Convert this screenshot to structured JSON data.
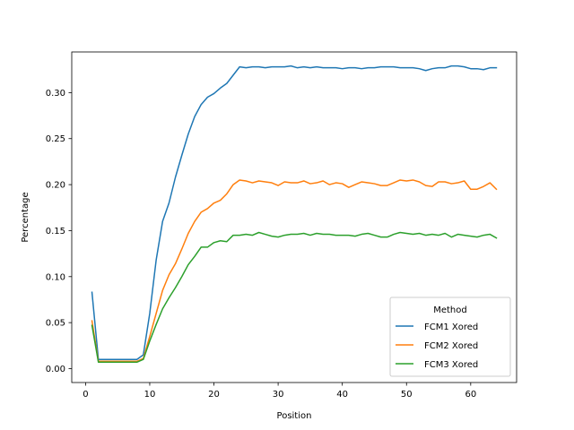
{
  "chart_data": {
    "type": "line",
    "xlabel": "Position",
    "ylabel": "Percentage",
    "xlim": [
      -2.15,
      67.15
    ],
    "ylim": [
      -0.0151,
      0.3442
    ],
    "xticks": [
      0,
      10,
      20,
      30,
      40,
      50,
      60
    ],
    "xtick_labels": [
      "0",
      "10",
      "20",
      "30",
      "40",
      "50",
      "60"
    ],
    "yticks": [
      0.0,
      0.05,
      0.1,
      0.15,
      0.2,
      0.25,
      0.3
    ],
    "ytick_labels": [
      "0.00",
      "0.05",
      "0.10",
      "0.15",
      "0.20",
      "0.25",
      "0.30"
    ],
    "grid": false,
    "legend": {
      "title": "Method",
      "position": "lower-right"
    },
    "x": [
      1,
      2,
      3,
      4,
      5,
      6,
      7,
      8,
      9,
      10,
      11,
      12,
      13,
      14,
      15,
      16,
      17,
      18,
      19,
      20,
      21,
      22,
      23,
      24,
      25,
      26,
      27,
      28,
      29,
      30,
      31,
      32,
      33,
      34,
      35,
      36,
      37,
      38,
      39,
      40,
      41,
      42,
      43,
      44,
      45,
      46,
      47,
      48,
      49,
      50,
      51,
      52,
      53,
      54,
      55,
      56,
      57,
      58,
      59,
      60,
      61,
      62,
      63,
      64
    ],
    "series": [
      {
        "name": "FCM1 Xored",
        "color": "#1f77b4",
        "values": [
          0.083,
          0.01,
          0.01,
          0.01,
          0.01,
          0.01,
          0.01,
          0.01,
          0.015,
          0.06,
          0.118,
          0.16,
          0.18,
          0.208,
          0.232,
          0.255,
          0.274,
          0.287,
          0.295,
          0.299,
          0.305,
          0.31,
          0.319,
          0.328,
          0.327,
          0.328,
          0.328,
          0.327,
          0.328,
          0.328,
          0.328,
          0.329,
          0.327,
          0.328,
          0.327,
          0.328,
          0.327,
          0.327,
          0.327,
          0.326,
          0.327,
          0.327,
          0.326,
          0.327,
          0.327,
          0.328,
          0.328,
          0.328,
          0.327,
          0.327,
          0.327,
          0.326,
          0.324,
          0.326,
          0.327,
          0.327,
          0.329,
          0.329,
          0.328,
          0.326,
          0.326,
          0.325,
          0.327,
          0.327
        ]
      },
      {
        "name": "FCM2 Xored",
        "color": "#ff7f0e",
        "values": [
          0.052,
          0.008,
          0.008,
          0.008,
          0.008,
          0.008,
          0.008,
          0.008,
          0.011,
          0.035,
          0.06,
          0.085,
          0.102,
          0.114,
          0.13,
          0.147,
          0.16,
          0.17,
          0.174,
          0.18,
          0.183,
          0.19,
          0.2,
          0.205,
          0.204,
          0.202,
          0.204,
          0.203,
          0.202,
          0.199,
          0.203,
          0.202,
          0.202,
          0.204,
          0.201,
          0.202,
          0.204,
          0.2,
          0.202,
          0.201,
          0.197,
          0.2,
          0.203,
          0.202,
          0.201,
          0.199,
          0.199,
          0.202,
          0.205,
          0.204,
          0.205,
          0.203,
          0.199,
          0.198,
          0.203,
          0.203,
          0.201,
          0.202,
          0.204,
          0.195,
          0.195,
          0.198,
          0.202,
          0.195
        ]
      },
      {
        "name": "FCM3 Xored",
        "color": "#2ca02c",
        "values": [
          0.047,
          0.007,
          0.007,
          0.007,
          0.007,
          0.007,
          0.007,
          0.007,
          0.01,
          0.03,
          0.048,
          0.065,
          0.077,
          0.088,
          0.1,
          0.113,
          0.122,
          0.132,
          0.132,
          0.137,
          0.139,
          0.138,
          0.145,
          0.145,
          0.146,
          0.145,
          0.148,
          0.146,
          0.144,
          0.143,
          0.145,
          0.146,
          0.146,
          0.147,
          0.145,
          0.147,
          0.146,
          0.146,
          0.145,
          0.145,
          0.145,
          0.144,
          0.146,
          0.147,
          0.145,
          0.143,
          0.143,
          0.146,
          0.148,
          0.147,
          0.146,
          0.147,
          0.145,
          0.146,
          0.145,
          0.147,
          0.143,
          0.146,
          0.145,
          0.144,
          0.143,
          0.145,
          0.146,
          0.142
        ]
      }
    ]
  }
}
